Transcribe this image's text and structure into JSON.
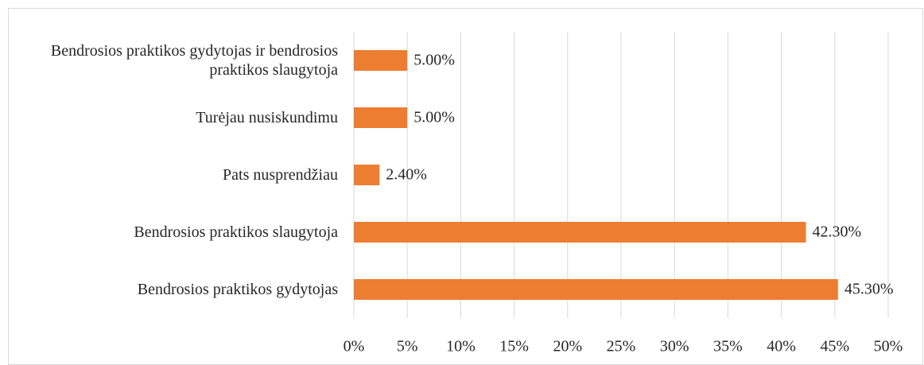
{
  "chart_data": {
    "type": "bar",
    "orientation": "horizontal",
    "categories": [
      "Bendrosios praktikos gydytojas ir bendrosios praktikos slaugytoja",
      "Turėjau nusiskundimu",
      "Pats nusprendžiau",
      "Bendrosios praktikos slaugytoja",
      "Bendrosios praktikos gydytojas"
    ],
    "values": [
      5,
      5,
      2.4,
      42.3,
      45.3
    ],
    "value_labels": [
      "5.00%",
      "5.00%",
      "2.40%",
      "42.30%",
      "45.30%"
    ],
    "color": "#ed7d31",
    "xlim": [
      0,
      50
    ],
    "xticks": [
      {
        "value": 0,
        "label": "0%"
      },
      {
        "value": 5,
        "label": "5%"
      },
      {
        "value": 10,
        "label": "10%"
      },
      {
        "value": 15,
        "label": "15%"
      },
      {
        "value": 20,
        "label": "20%"
      },
      {
        "value": 25,
        "label": "25%"
      },
      {
        "value": 30,
        "label": "30%"
      },
      {
        "value": 35,
        "label": "35%"
      },
      {
        "value": 40,
        "label": "40%"
      },
      {
        "value": 45,
        "label": "45%"
      },
      {
        "value": 50,
        "label": "50%"
      }
    ],
    "grid": true
  }
}
